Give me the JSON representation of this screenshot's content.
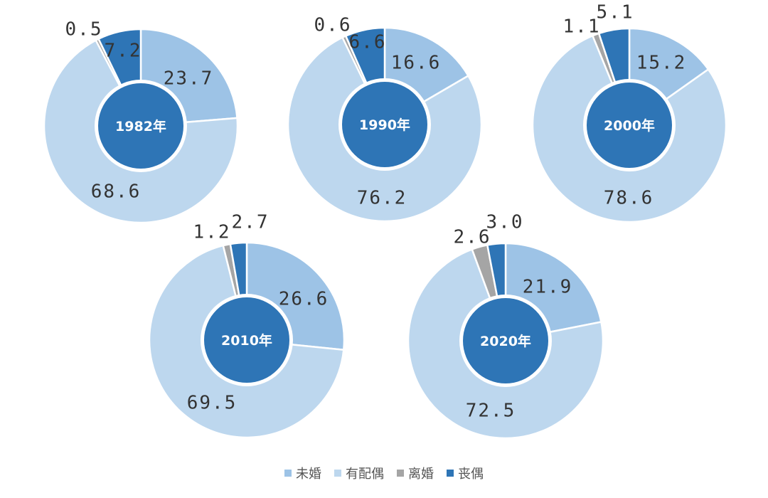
{
  "chart_data": {
    "type": "pie",
    "series_names": [
      "未婚",
      "有配偶",
      "离婚",
      "丧偶"
    ],
    "colors": [
      "#9DC3E6",
      "#BDD7EE",
      "#A5A5A5",
      "#2E75B6"
    ],
    "center_color": "#2E75B6",
    "charts": [
      {
        "year_label": "1982年",
        "values": [
          23.7,
          68.6,
          0.5,
          7.2
        ],
        "labels": [
          "23.7",
          "68.6",
          "0.5",
          "7.2"
        ]
      },
      {
        "year_label": "1990年",
        "values": [
          16.6,
          76.2,
          0.6,
          6.6
        ],
        "labels": [
          "16.6",
          "76.2",
          "0.6",
          "6.6"
        ]
      },
      {
        "year_label": "2000年",
        "values": [
          15.2,
          78.6,
          1.1,
          5.1
        ],
        "labels": [
          "15.2",
          "78.6",
          "1.1",
          "5.1"
        ]
      },
      {
        "year_label": "2010年",
        "values": [
          26.6,
          69.5,
          1.2,
          2.7
        ],
        "labels": [
          "26.6",
          "69.5",
          "1.2",
          "2.7"
        ]
      },
      {
        "year_label": "2020年",
        "values": [
          21.9,
          72.5,
          2.6,
          3.0
        ],
        "labels": [
          "21.9",
          "72.5",
          "2.6",
          "3.0"
        ]
      }
    ],
    "legend": {
      "placement": "bottom",
      "items": [
        {
          "label": "未婚",
          "color": "#9DC3E6"
        },
        {
          "label": "有配偶",
          "color": "#BDD7EE"
        },
        {
          "label": "离婚",
          "color": "#A5A5A5"
        },
        {
          "label": "丧偶",
          "color": "#2E75B6"
        }
      ]
    }
  }
}
